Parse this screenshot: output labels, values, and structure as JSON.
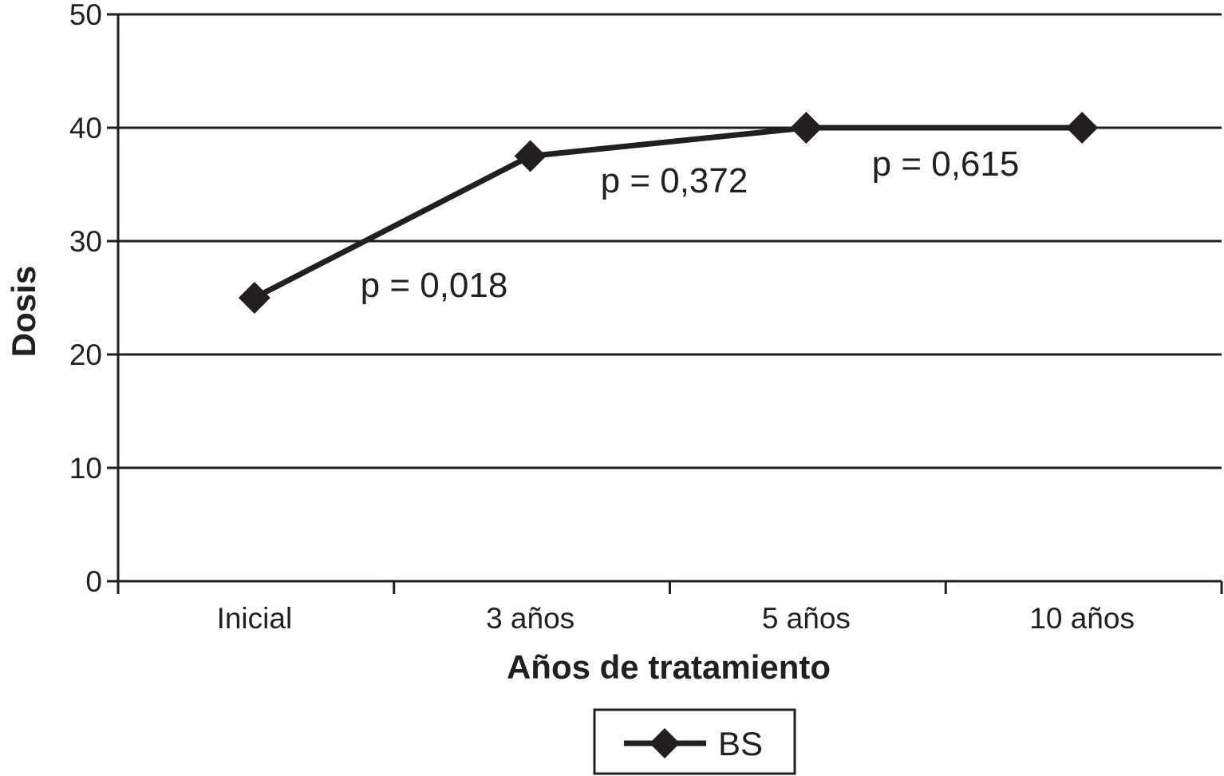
{
  "chart_data": {
    "type": "line",
    "categories": [
      "Inicial",
      "3 años",
      "5 años",
      "10 años"
    ],
    "series": [
      {
        "name": "BS",
        "values": [
          25,
          37.5,
          40,
          40
        ],
        "color": "#231f20",
        "marker": "diamond"
      }
    ],
    "xlabel": "Años de tratamiento",
    "ylabel": "Dosis",
    "ylim": [
      0,
      50
    ],
    "yticks": [
      0,
      10,
      20,
      30,
      40,
      50
    ],
    "grid": true,
    "legend": "bottom",
    "annotations": [
      {
        "text": "p = 0,018",
        "between": [
          "Inicial",
          "3 años"
        ]
      },
      {
        "text": "p = 0,372",
        "between": [
          "3 años",
          "5 años"
        ]
      },
      {
        "text": "p = 0,615",
        "between": [
          "5 años",
          "10 años"
        ]
      }
    ]
  }
}
